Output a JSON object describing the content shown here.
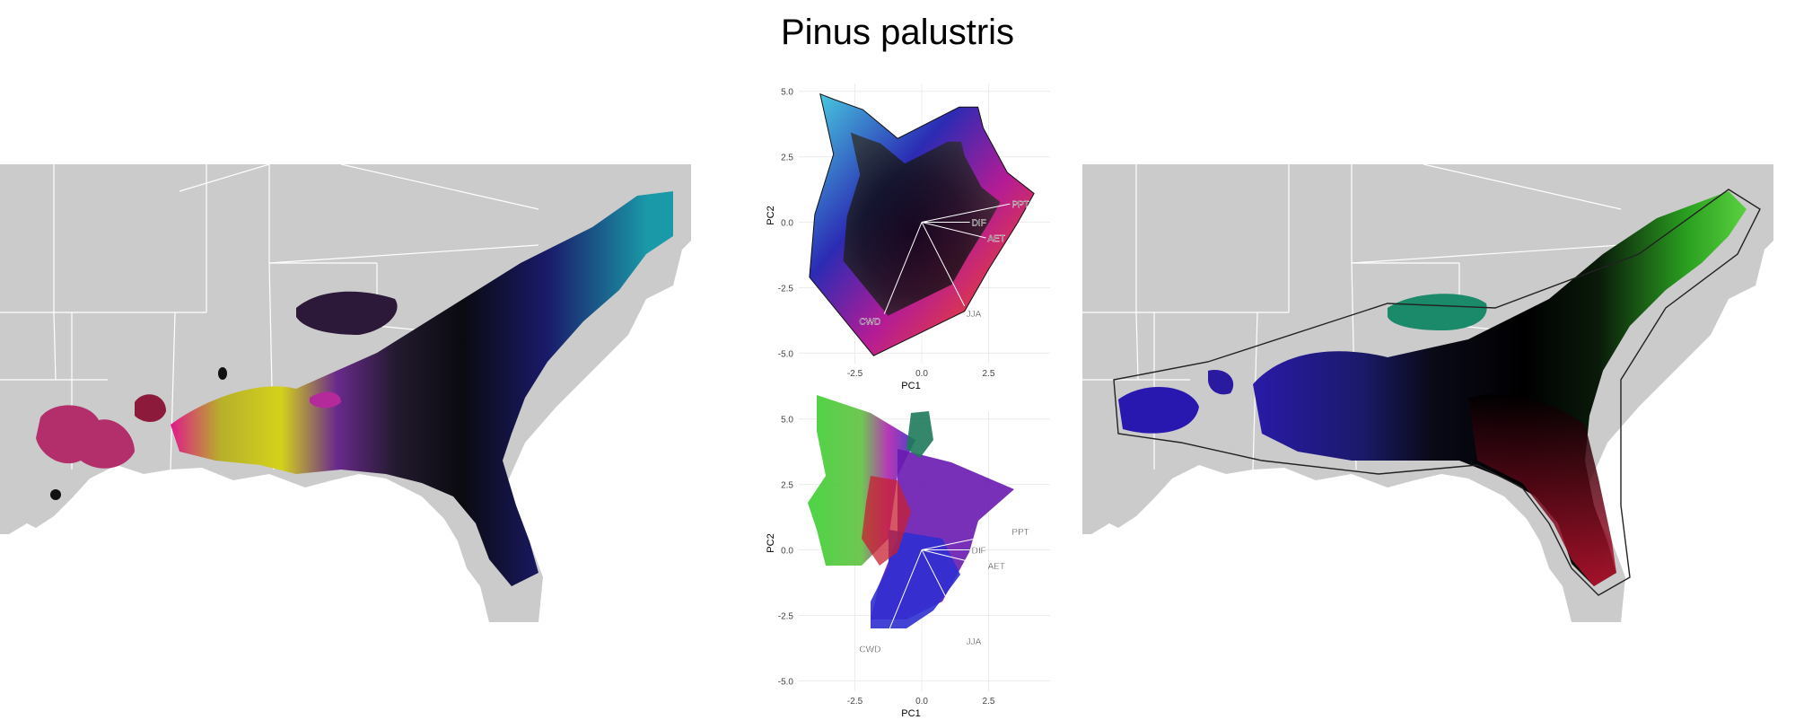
{
  "title": "Pinus palustris",
  "colors": {
    "land": "#cbcbcb",
    "borders": "#ffffff",
    "grid": "#ececec"
  },
  "chart_data": [
    {
      "type": "scatter",
      "panel": "pca-top",
      "xlabel": "PC1",
      "ylabel": "PC2",
      "xticks": [
        -2.5,
        0.0,
        2.5
      ],
      "xtick_labels": [
        "-2.5",
        "0.0",
        "2.5"
      ],
      "yticks": [
        5.0,
        2.5,
        0.0,
        -2.5,
        -5.0
      ],
      "ytick_labels": [
        "5.0",
        "2.5",
        "0.0",
        "-2.5",
        "-5.0"
      ],
      "xlim": [
        -4.6,
        4.8
      ],
      "ylim": [
        -5.4,
        5.3
      ],
      "grid": true,
      "hull": [
        [
          -3.8,
          4.9
        ],
        [
          -3.3,
          4.7
        ],
        [
          -2.2,
          4.3
        ],
        [
          -0.9,
          3.2
        ],
        [
          1.4,
          4.4
        ],
        [
          2.1,
          4.4
        ],
        [
          2.3,
          3.6
        ],
        [
          3.2,
          1.9
        ],
        [
          4.2,
          1.1
        ],
        [
          3.6,
          0.0
        ],
        [
          2.5,
          -1.8
        ],
        [
          1.6,
          -3.4
        ],
        [
          -1.8,
          -5.1
        ],
        [
          -4.2,
          -2.1
        ],
        [
          -4.0,
          0.3
        ],
        [
          -3.3,
          2.6
        ]
      ],
      "vectors": [
        {
          "label": "PPT",
          "x": 3.3,
          "y": 0.7
        },
        {
          "label": "DIF",
          "x": 1.8,
          "y": 0.0
        },
        {
          "label": "AET",
          "x": 2.4,
          "y": -0.6
        },
        {
          "label": "JJA",
          "x": 1.6,
          "y": -3.2
        },
        {
          "label": "CWD",
          "x": -1.4,
          "y": -3.5
        }
      ]
    },
    {
      "type": "scatter",
      "panel": "pca-bottom",
      "xlabel": "PC1",
      "ylabel": "PC2",
      "xticks": [
        -2.5,
        0.0,
        2.5
      ],
      "xtick_labels": [
        "-2.5",
        "0.0",
        "2.5"
      ],
      "yticks": [
        5.0,
        2.5,
        0.0,
        -2.5,
        -5.0
      ],
      "ytick_labels": [
        "5.0",
        "2.5",
        "0.0",
        "-2.5",
        "-5.0"
      ],
      "xlim": [
        -4.6,
        4.8
      ],
      "ylim": [
        -5.4,
        5.3
      ],
      "grid": true,
      "vectors": [
        {
          "label": "PPT",
          "x": 3.3,
          "y": 0.7
        },
        {
          "label": "DIF",
          "x": 1.8,
          "y": 0.0
        },
        {
          "label": "AET",
          "x": 2.4,
          "y": -0.6
        },
        {
          "label": "JJA",
          "x": 1.6,
          "y": -3.2
        },
        {
          "label": "CWD",
          "x": -1.4,
          "y": -3.5
        }
      ]
    }
  ]
}
